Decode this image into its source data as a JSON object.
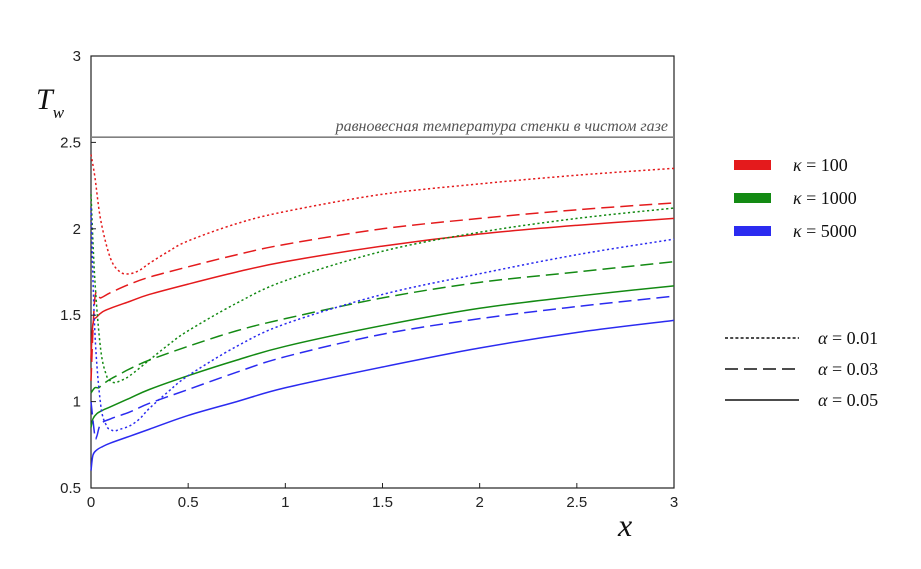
{
  "chart_data": {
    "type": "line",
    "title": "",
    "xlabel": "x",
    "ylabel_main": "T",
    "ylabel_sub": "w",
    "xlim": [
      0,
      3
    ],
    "ylim": [
      0.5,
      3
    ],
    "xticks": [
      "0",
      "0.5",
      "1",
      "1.5",
      "2",
      "2.5",
      "3"
    ],
    "yticks": [
      "0.5",
      "1",
      "1.5",
      "2",
      "2.5",
      "3"
    ],
    "grid": false,
    "colors": {
      "red": "#e41a1c",
      "green": "#138a13",
      "blue": "#2b2bf0",
      "reference": "#808080"
    },
    "reference_line": {
      "y": 2.53,
      "label": "равновесная температура стенки в чистом газе"
    },
    "legend_kappa": [
      {
        "symbol": "κ",
        "text": " = 100",
        "color": "#e41a1c"
      },
      {
        "symbol": "κ",
        "text": " = 1000",
        "color": "#138a13"
      },
      {
        "symbol": "κ",
        "text": " = 5000",
        "color": "#2b2bf0"
      }
    ],
    "legend_alpha": [
      {
        "symbol": "α",
        "text": " = 0.01",
        "dash": "dotted"
      },
      {
        "symbol": "α",
        "text": " = 0.03",
        "dash": "dashed"
      },
      {
        "symbol": "α",
        "text": " = 0.05",
        "dash": "solid"
      }
    ],
    "series": [
      {
        "kappa": "100",
        "alpha": "0.01",
        "color": "#e41a1c",
        "dash": "dotted",
        "x": [
          0,
          0.02,
          0.05,
          0.1,
          0.15,
          0.2,
          0.25,
          0.3,
          0.4,
          0.5,
          0.75,
          1,
          1.5,
          2,
          2.5,
          3
        ],
        "y": [
          2.43,
          2.3,
          2.05,
          1.83,
          1.75,
          1.74,
          1.76,
          1.8,
          1.87,
          1.93,
          2.03,
          2.1,
          2.2,
          2.26,
          2.31,
          2.35
        ]
      },
      {
        "kappa": "100",
        "alpha": "0.03",
        "color": "#e41a1c",
        "dash": "dashed",
        "x": [
          0,
          0.02,
          0.05,
          0.1,
          0.2,
          0.3,
          0.5,
          0.75,
          1,
          1.5,
          2,
          2.5,
          3
        ],
        "y": [
          1.12,
          1.6,
          1.6,
          1.63,
          1.68,
          1.72,
          1.78,
          1.85,
          1.91,
          2.0,
          2.06,
          2.11,
          2.15
        ]
      },
      {
        "kappa": "100",
        "alpha": "0.05",
        "color": "#e41a1c",
        "dash": "solid",
        "x": [
          0,
          0.01,
          0.03,
          0.06,
          0.1,
          0.2,
          0.3,
          0.5,
          0.75,
          1,
          1.5,
          2,
          2.5,
          3
        ],
        "y": [
          1.25,
          1.45,
          1.49,
          1.52,
          1.54,
          1.58,
          1.62,
          1.68,
          1.75,
          1.81,
          1.9,
          1.97,
          2.02,
          2.06
        ]
      },
      {
        "kappa": "1000",
        "alpha": "0.01",
        "color": "#138a13",
        "dash": "dotted",
        "x": [
          0,
          0.02,
          0.05,
          0.08,
          0.1,
          0.12,
          0.15,
          0.2,
          0.3,
          0.4,
          0.5,
          0.75,
          1,
          1.5,
          2,
          2.5,
          3
        ],
        "y": [
          2.2,
          1.7,
          1.3,
          1.15,
          1.12,
          1.11,
          1.12,
          1.15,
          1.24,
          1.33,
          1.41,
          1.57,
          1.7,
          1.87,
          1.98,
          2.06,
          2.12
        ]
      },
      {
        "kappa": "1000",
        "alpha": "0.03",
        "color": "#138a13",
        "dash": "dashed",
        "x": [
          0,
          0.02,
          0.04,
          0.06,
          0.1,
          0.15,
          0.2,
          0.3,
          0.5,
          0.75,
          1,
          1.5,
          2,
          2.5,
          3
        ],
        "y": [
          1.05,
          1.08,
          1.08,
          1.1,
          1.13,
          1.16,
          1.19,
          1.24,
          1.32,
          1.41,
          1.48,
          1.6,
          1.69,
          1.75,
          1.81
        ]
      },
      {
        "kappa": "1000",
        "alpha": "0.05",
        "color": "#138a13",
        "dash": "solid",
        "x": [
          0,
          0.01,
          0.03,
          0.06,
          0.1,
          0.2,
          0.3,
          0.5,
          0.75,
          1,
          1.5,
          2,
          2.5,
          3
        ],
        "y": [
          0.85,
          0.9,
          0.93,
          0.95,
          0.97,
          1.02,
          1.07,
          1.15,
          1.24,
          1.32,
          1.44,
          1.54,
          1.61,
          1.67
        ]
      },
      {
        "kappa": "5000",
        "alpha": "0.01",
        "color": "#2b2bf0",
        "dash": "dotted",
        "x": [
          0,
          0.02,
          0.05,
          0.08,
          0.1,
          0.12,
          0.15,
          0.2,
          0.25,
          0.3,
          0.4,
          0.5,
          0.75,
          1,
          1.5,
          2,
          2.5,
          3
        ],
        "y": [
          2.12,
          1.4,
          0.98,
          0.86,
          0.84,
          0.83,
          0.84,
          0.86,
          0.9,
          0.96,
          1.06,
          1.15,
          1.32,
          1.45,
          1.62,
          1.74,
          1.85,
          1.94
        ]
      },
      {
        "kappa": "5000",
        "alpha": "0.03",
        "color": "#2b2bf0",
        "dash": "dashed",
        "x": [
          0,
          0.02,
          0.03,
          0.05,
          0.1,
          0.2,
          0.3,
          0.5,
          0.75,
          1,
          1.5,
          2,
          2.5,
          3
        ],
        "y": [
          1.0,
          0.8,
          0.8,
          0.87,
          0.9,
          0.94,
          0.99,
          1.07,
          1.17,
          1.26,
          1.39,
          1.48,
          1.55,
          1.61
        ]
      },
      {
        "kappa": "5000",
        "alpha": "0.05",
        "color": "#2b2bf0",
        "dash": "solid",
        "x": [
          0,
          0.01,
          0.03,
          0.06,
          0.1,
          0.2,
          0.3,
          0.5,
          0.75,
          1,
          1.5,
          2,
          2.5,
          3
        ],
        "y": [
          0.6,
          0.69,
          0.72,
          0.74,
          0.76,
          0.8,
          0.84,
          0.92,
          1.0,
          1.08,
          1.2,
          1.31,
          1.4,
          1.47
        ]
      }
    ]
  }
}
